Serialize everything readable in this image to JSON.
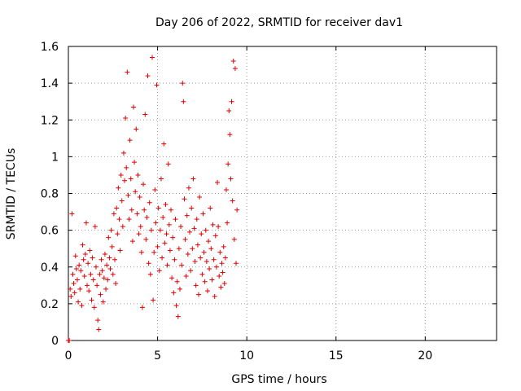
{
  "chart_data": {
    "type": "scatter",
    "title": "Day 206 of 2022, SRMTID for receiver dav1",
    "xlabel": "GPS time / hours",
    "ylabel": "SRMTID / TECUs",
    "xlim": [
      0,
      24
    ],
    "ylim": [
      0,
      1.6
    ],
    "x_ticks": [
      0,
      5,
      10,
      15,
      20
    ],
    "x_tick_labels": [
      "0",
      "5",
      "10",
      "15",
      "20"
    ],
    "y_ticks": [
      0,
      0.2,
      0.4,
      0.6,
      0.8,
      1.0,
      1.2,
      1.4,
      1.6
    ],
    "y_tick_labels": [
      "0",
      "0.2",
      "0.4",
      "0.6",
      "0.8",
      "1",
      "1.2",
      "1.4",
      "1.6"
    ],
    "grid": true,
    "marker": "+",
    "marker_color": "#e00000",
    "series": [
      {
        "name": "SRMTID",
        "points": [
          [
            0.0,
            0.0
          ],
          [
            0.05,
            0.0
          ],
          [
            0.1,
            0.28
          ],
          [
            0.15,
            0.24
          ],
          [
            0.2,
            0.69
          ],
          [
            0.25,
            0.36
          ],
          [
            0.3,
            0.31
          ],
          [
            0.35,
            0.26
          ],
          [
            0.4,
            0.46
          ],
          [
            0.45,
            0.39
          ],
          [
            0.5,
            0.33
          ],
          [
            0.55,
            0.21
          ],
          [
            0.6,
            0.41
          ],
          [
            0.65,
            0.28
          ],
          [
            0.7,
            0.38
          ],
          [
            0.75,
            0.19
          ],
          [
            0.8,
            0.52
          ],
          [
            0.85,
            0.44
          ],
          [
            0.9,
            0.35
          ],
          [
            0.95,
            0.47
          ],
          [
            1.0,
            0.64
          ],
          [
            1.05,
            0.3
          ],
          [
            1.1,
            0.42
          ],
          [
            1.15,
            0.27
          ],
          [
            1.2,
            0.49
          ],
          [
            1.25,
            0.36
          ],
          [
            1.3,
            0.22
          ],
          [
            1.35,
            0.45
          ],
          [
            1.4,
            0.33
          ],
          [
            1.45,
            0.18
          ],
          [
            1.5,
            0.62
          ],
          [
            1.55,
            0.4
          ],
          [
            1.6,
            0.3
          ],
          [
            1.65,
            0.11
          ],
          [
            1.7,
            0.06
          ],
          [
            1.75,
            0.36
          ],
          [
            1.8,
            0.25
          ],
          [
            1.85,
            0.44
          ],
          [
            1.9,
            0.38
          ],
          [
            1.95,
            0.21
          ],
          [
            2.0,
            0.34
          ],
          [
            2.05,
            0.47
          ],
          [
            2.1,
            0.28
          ],
          [
            2.15,
            0.41
          ],
          [
            2.2,
            0.33
          ],
          [
            2.25,
            0.56
          ],
          [
            2.3,
            0.45
          ],
          [
            2.35,
            0.39
          ],
          [
            2.4,
            0.6
          ],
          [
            2.45,
            0.51
          ],
          [
            2.5,
            0.36
          ],
          [
            2.55,
            0.69
          ],
          [
            2.6,
            0.44
          ],
          [
            2.65,
            0.31
          ],
          [
            2.7,
            0.72
          ],
          [
            2.75,
            0.58
          ],
          [
            2.8,
            0.83
          ],
          [
            2.85,
            0.66
          ],
          [
            2.9,
            0.49
          ],
          [
            2.95,
            0.9
          ],
          [
            3.0,
            0.76
          ],
          [
            3.05,
            0.62
          ],
          [
            3.1,
            1.02
          ],
          [
            3.15,
            0.87
          ],
          [
            3.2,
            1.21
          ],
          [
            3.25,
            0.94
          ],
          [
            3.3,
            1.46
          ],
          [
            3.35,
            0.79
          ],
          [
            3.4,
            0.66
          ],
          [
            3.45,
            1.09
          ],
          [
            3.5,
            0.88
          ],
          [
            3.55,
            0.71
          ],
          [
            3.6,
            0.54
          ],
          [
            3.65,
            1.27
          ],
          [
            3.7,
            0.97
          ],
          [
            3.75,
            0.81
          ],
          [
            3.8,
            1.15
          ],
          [
            3.85,
            0.69
          ],
          [
            3.9,
            0.9
          ],
          [
            3.95,
            0.58
          ],
          [
            4.0,
            0.78
          ],
          [
            4.05,
            0.62
          ],
          [
            4.1,
            0.48
          ],
          [
            4.15,
            0.18
          ],
          [
            4.2,
            0.85
          ],
          [
            4.25,
            0.71
          ],
          [
            4.3,
            1.23
          ],
          [
            4.35,
            0.55
          ],
          [
            4.4,
            0.67
          ],
          [
            4.45,
            1.44
          ],
          [
            4.5,
            0.42
          ],
          [
            4.55,
            0.75
          ],
          [
            4.6,
            0.36
          ],
          [
            4.65,
            0.6
          ],
          [
            4.7,
            1.54
          ],
          [
            4.75,
            0.22
          ],
          [
            4.8,
            0.48
          ],
          [
            4.85,
            0.82
          ],
          [
            4.9,
            0.64
          ],
          [
            4.95,
            1.39
          ],
          [
            5.0,
            0.51
          ],
          [
            5.05,
            0.72
          ],
          [
            5.1,
            0.38
          ],
          [
            5.15,
            0.6
          ],
          [
            5.2,
            0.88
          ],
          [
            5.25,
            0.45
          ],
          [
            5.3,
            0.67
          ],
          [
            5.35,
            1.07
          ],
          [
            5.4,
            0.53
          ],
          [
            5.45,
            0.74
          ],
          [
            5.5,
            0.58
          ],
          [
            5.55,
            0.41
          ],
          [
            5.6,
            0.96
          ],
          [
            5.65,
            0.63
          ],
          [
            5.7,
            0.49
          ],
          [
            5.75,
            0.71
          ],
          [
            5.8,
            0.34
          ],
          [
            5.85,
            0.56
          ],
          [
            5.9,
            0.26
          ],
          [
            5.95,
            0.44
          ],
          [
            6.0,
            0.66
          ],
          [
            6.05,
            0.19
          ],
          [
            6.1,
            0.32
          ],
          [
            6.15,
            0.13
          ],
          [
            6.2,
            0.5
          ],
          [
            6.25,
            0.28
          ],
          [
            6.3,
            0.62
          ],
          [
            6.35,
            0.41
          ],
          [
            6.4,
            1.4
          ],
          [
            6.45,
            1.3
          ],
          [
            6.5,
            0.77
          ],
          [
            6.55,
            0.55
          ],
          [
            6.6,
            0.35
          ],
          [
            6.65,
            0.68
          ],
          [
            6.7,
            0.47
          ],
          [
            6.75,
            0.83
          ],
          [
            6.8,
            0.59
          ],
          [
            6.85,
            0.38
          ],
          [
            6.9,
            0.72
          ],
          [
            6.95,
            0.5
          ],
          [
            7.0,
            0.88
          ],
          [
            7.05,
            0.61
          ],
          [
            7.1,
            0.43
          ],
          [
            7.15,
            0.3
          ],
          [
            7.2,
            0.66
          ],
          [
            7.25,
            0.52
          ],
          [
            7.3,
            0.25
          ],
          [
            7.35,
            0.78
          ],
          [
            7.4,
            0.45
          ],
          [
            7.45,
            0.58
          ],
          [
            7.5,
            0.36
          ],
          [
            7.55,
            0.69
          ],
          [
            7.6,
            0.48
          ],
          [
            7.65,
            0.32
          ],
          [
            7.7,
            0.6
          ],
          [
            7.75,
            0.43
          ],
          [
            7.8,
            0.27
          ],
          [
            7.85,
            0.54
          ],
          [
            7.9,
            0.39
          ],
          [
            7.95,
            0.72
          ],
          [
            8.0,
            0.5
          ],
          [
            8.05,
            0.33
          ],
          [
            8.1,
            0.63
          ],
          [
            8.15,
            0.44
          ],
          [
            8.2,
            0.24
          ],
          [
            8.25,
            0.57
          ],
          [
            8.3,
            0.4
          ],
          [
            8.35,
            0.86
          ],
          [
            8.4,
            0.62
          ],
          [
            8.45,
            0.35
          ],
          [
            8.5,
            0.48
          ],
          [
            8.55,
            0.29
          ],
          [
            8.6,
            0.42
          ],
          [
            8.65,
            0.37
          ],
          [
            8.7,
            0.51
          ],
          [
            8.75,
            0.31
          ],
          [
            8.8,
            0.45
          ],
          [
            8.85,
            0.82
          ],
          [
            8.9,
            0.64
          ],
          [
            8.95,
            0.96
          ],
          [
            9.0,
            1.25
          ],
          [
            9.05,
            1.12
          ],
          [
            9.1,
            0.88
          ],
          [
            9.15,
            1.3
          ],
          [
            9.2,
            0.76
          ],
          [
            9.25,
            1.52
          ],
          [
            9.3,
            0.55
          ],
          [
            9.35,
            1.48
          ],
          [
            9.4,
            0.42
          ],
          [
            9.45,
            0.71
          ]
        ]
      }
    ]
  }
}
